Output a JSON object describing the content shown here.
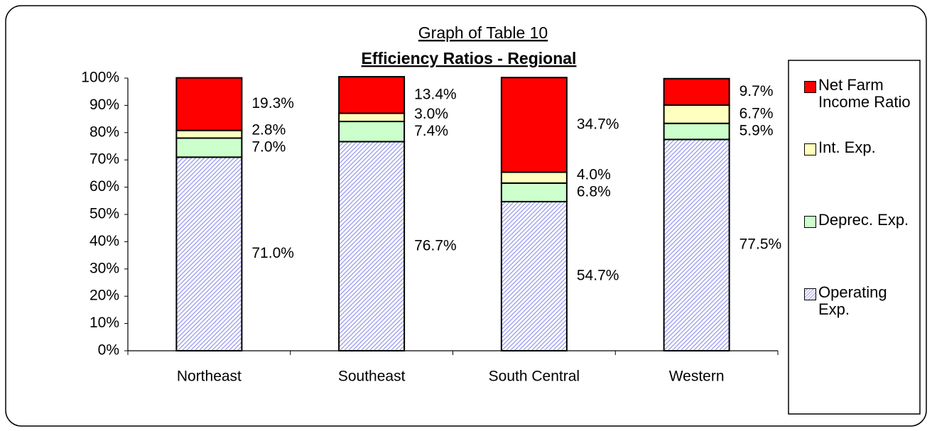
{
  "chart_data": {
    "type": "stacked_bar",
    "title": "Graph of Table 10",
    "subtitle": "Efficiency Ratios - Regional",
    "categories": [
      "Northeast",
      "Southeast",
      "South Central",
      "Western"
    ],
    "series": [
      {
        "name": "Operating Exp.",
        "color": "#ccccff",
        "values": [
          71.0,
          76.7,
          54.7,
          77.5
        ],
        "value_labels": [
          "71.0%",
          "76.7%",
          "54.7%",
          "77.5%"
        ]
      },
      {
        "name": "Deprec. Exp.",
        "color": "#ccffcc",
        "values": [
          7.0,
          7.4,
          6.8,
          5.9
        ],
        "value_labels": [
          "7.0%",
          "7.4%",
          "6.8%",
          "5.9%"
        ]
      },
      {
        "name": "Int. Exp.",
        "color": "#ffffc0",
        "values": [
          2.8,
          3.0,
          4.0,
          6.7
        ],
        "value_labels": [
          "2.8%",
          "3.0%",
          "4.0%",
          "6.7%"
        ]
      },
      {
        "name": "Net Farm Income Ratio",
        "color": "#ff0000",
        "values": [
          19.3,
          13.4,
          34.7,
          9.7
        ],
        "value_labels": [
          "19.3%",
          "13.4%",
          "34.7%",
          "9.7%"
        ]
      }
    ],
    "ylim": [
      0,
      100
    ],
    "yticks": [
      {
        "value": 0,
        "label": "0%"
      },
      {
        "value": 10,
        "label": "10%"
      },
      {
        "value": 20,
        "label": "20%"
      },
      {
        "value": 30,
        "label": "30%"
      },
      {
        "value": 40,
        "label": "40%"
      },
      {
        "value": 50,
        "label": "50%"
      },
      {
        "value": 60,
        "label": "60%"
      },
      {
        "value": 70,
        "label": "70%"
      },
      {
        "value": 80,
        "label": "80%"
      },
      {
        "value": 90,
        "label": "90%"
      },
      {
        "value": 100,
        "label": "100%"
      }
    ],
    "legend": "right"
  }
}
